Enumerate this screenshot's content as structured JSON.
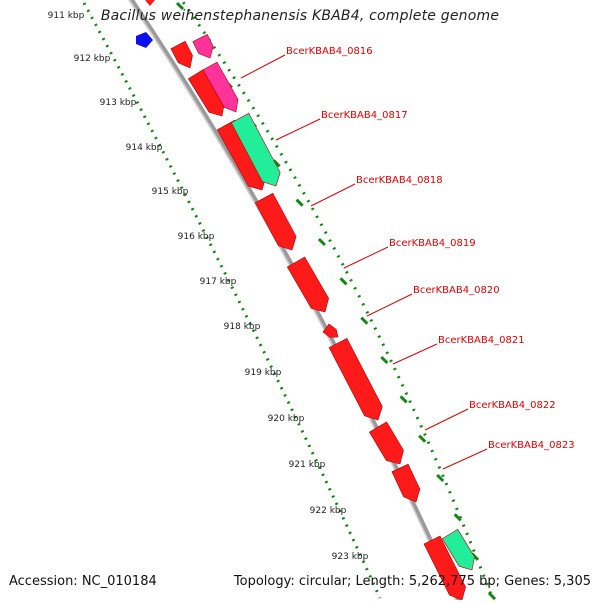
{
  "title": "Bacillus weihenstephanensis KBAB4, complete genome",
  "footer": {
    "accession": "Accession: NC_010184",
    "topology": "Topology: circular; Length: 5,262,775 bp; Genes: 5,305"
  },
  "scale_labels": [
    "911 kbp",
    "912 kbp",
    "913 kbp",
    "914 kbp",
    "915 kbp",
    "916 kbp",
    "917 kbp",
    "918 kbp",
    "919 kbp",
    "920 kbp",
    "921 kbp",
    "922 kbp",
    "923 kbp"
  ],
  "gene_labels": [
    "BcerKBAB4_0816",
    "BcerKBAB4_0817",
    "BcerKBAB4_0818",
    "BcerKBAB4_0819",
    "BcerKBAB4_0820",
    "BcerKBAB4_0821",
    "BcerKBAB4_0822",
    "BcerKBAB4_0823"
  ],
  "colors": {
    "cds": "#ff1a1a",
    "cds_dark": "#b00000",
    "trna_magenta": "#ff3399",
    "rna_green": "#22ee99",
    "scale_green": "#118811",
    "backbone": "#9a9a9a",
    "label_red": "#dd0000",
    "blue_feature": "#1010ee"
  }
}
